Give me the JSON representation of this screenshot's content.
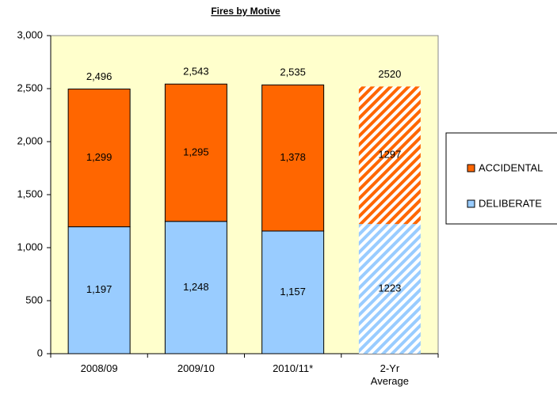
{
  "chart_data": {
    "type": "stacked_bar",
    "title": "Fires by Motive",
    "categories": [
      "2008/09",
      "2009/10",
      "2010/11*",
      "2-Yr Average"
    ],
    "series": [
      {
        "name": "DELIBERATE",
        "color": "#99ccff",
        "values": [
          1197,
          1248,
          1157,
          1223
        ],
        "value_labels": [
          "1,197",
          "1,248",
          "1,157",
          "1223"
        ]
      },
      {
        "name": "ACCIDENTAL",
        "color": "#ff6600",
        "values": [
          1299,
          1295,
          1378,
          1297
        ],
        "value_labels": [
          "1,299",
          "1,295",
          "1,378",
          "1297"
        ]
      }
    ],
    "totals": [
      2496,
      2543,
      2535,
      2520
    ],
    "total_labels": [
      "2,496",
      "2,543",
      "2,535",
      "2520"
    ],
    "hatched": [
      false,
      false,
      false,
      true
    ],
    "ylim": [
      0,
      3000
    ],
    "yticks": [
      0,
      500,
      {
        "value": 1000,
        "label": "1,000"
      },
      {
        "value": 1500,
        "label": "1,500"
      },
      {
        "value": 2000,
        "label": "2,000"
      },
      {
        "value": 2500,
        "label": "2,500"
      },
      {
        "value": 3000,
        "label": "3,000"
      }
    ],
    "legend": "right",
    "background": "#ffffcc"
  }
}
